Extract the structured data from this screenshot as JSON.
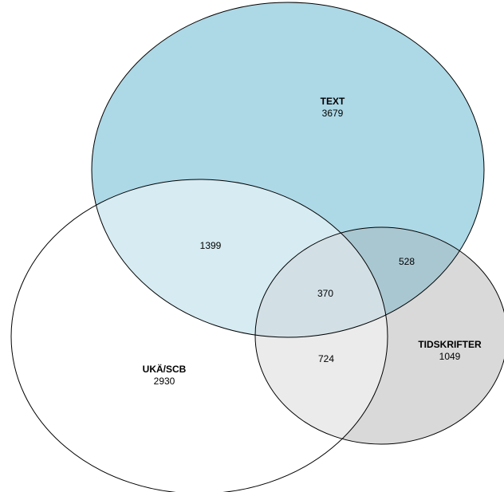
{
  "venn": {
    "sets": {
      "text": {
        "name": "TEXT",
        "total": "3679",
        "fill": "#add8e6"
      },
      "uka_scb": {
        "name": "UKÄ/SCB",
        "total": "2930",
        "fill": "#ffffff"
      },
      "tidskrifter": {
        "name": "TIDSKRIFTER",
        "total": "1049",
        "fill": "#d9d9d9"
      }
    },
    "regions": {
      "text_uka": "1399",
      "text_tidskrifter": "528",
      "all_three": "370",
      "uka_tidskrifter": "724"
    },
    "outline_color": "#000000"
  }
}
